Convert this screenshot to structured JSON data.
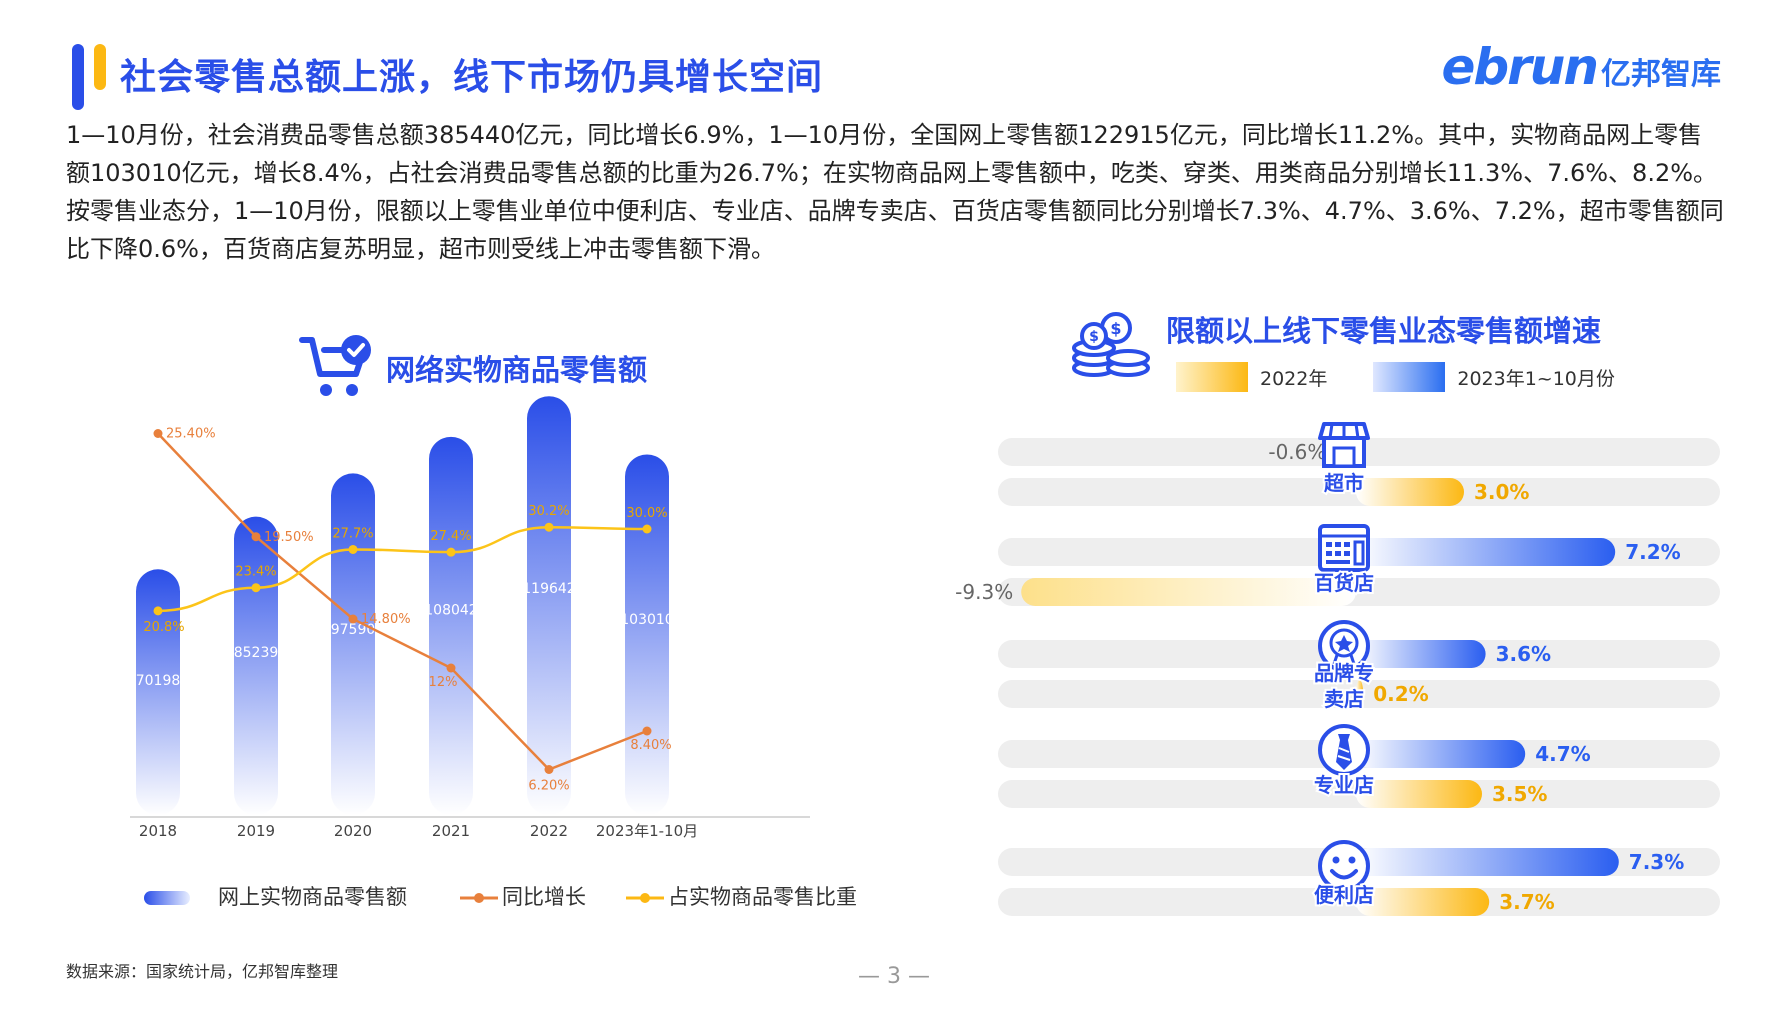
{
  "header": {
    "title": "社会零售总额上涨，线下市场仍具增长空间",
    "logo_brand": "ebrun",
    "logo_cn": "亿邦智库"
  },
  "intro": {
    "p1": "1—10月份，社会消费品零售总额385440亿元，同比增长6.9%，1—10月份，全国网上零售额122915亿元，同比增长11.2%。其中，实物商品网上零售额103010亿元，增长8.4%，占社会消费品零售总额的比重为26.7%；在实物商品网上零售额中，吃类、穿类、用类商品分别增长11.3%、7.6%、8.2%。",
    "p2": "按零售业态分，1—10月份，限额以上零售业单位中便利店、专业店、品牌专卖店、百货店零售额同比分别增长7.3%、4.7%、3.6%、7.2%，超市零售额同比下降0.6%，百货商店复苏明显，超市则受线上冲击零售额下滑。"
  },
  "colors": {
    "blue": "#2a4ee8",
    "orange": "#e8803c",
    "yellow": "#fcb813",
    "track": "#eeeeee"
  },
  "chart_data": [
    {
      "type": "bar",
      "title": "网络实物商品零售额",
      "categories": [
        "2018",
        "2019",
        "2020",
        "2021",
        "2022",
        "2023年1-10月"
      ],
      "series": [
        {
          "name": "网上实物商品零售额",
          "type": "bar",
          "values": [
            70198,
            85239,
            97590,
            108042,
            119642,
            103010
          ],
          "labels": [
            "70198",
            "85239",
            "97590",
            "108042",
            "119642",
            "103010"
          ]
        },
        {
          "name": "同比增长",
          "type": "line",
          "values": [
            25.4,
            19.5,
            14.8,
            12,
            6.2,
            8.4
          ],
          "labels": [
            "25.40%",
            "19.50%",
            "14.80%",
            "12%",
            "6.20%",
            "8.40%"
          ]
        },
        {
          "name": "占实物商品零售比重",
          "type": "line",
          "values": [
            20.8,
            23.4,
            27.7,
            27.4,
            30.2,
            30.0
          ],
          "labels": [
            "20.8%",
            "23.4%",
            "27.7%",
            "27.4%",
            "30.2%",
            "30.0%"
          ]
        }
      ],
      "legend": "bottom"
    },
    {
      "type": "bar",
      "title": "限额以上线下零售业态零售额增速",
      "orientation": "horizontal",
      "categories": [
        "超市",
        "百货店",
        "品牌专卖店",
        "专业店",
        "便利店"
      ],
      "series": [
        {
          "name": "2023年1~10月份",
          "values": [
            -0.6,
            7.2,
            3.6,
            4.7,
            7.3
          ],
          "labels": [
            "-0.6%",
            "7.2%",
            "3.6%",
            "4.7%",
            "7.3%"
          ]
        },
        {
          "name": "2022年",
          "values": [
            3.0,
            -9.3,
            0.2,
            3.5,
            3.7
          ],
          "labels": [
            "3.0%",
            "-9.3%",
            "0.2%",
            "3.5%",
            "3.7%"
          ]
        }
      ],
      "legend": "top"
    }
  ],
  "icons": {
    "cart": "cart-check-icon",
    "coins": "coin-stack-icon",
    "supermarket": "storefront-icon",
    "department": "register-icon",
    "brand": "badge-star-icon",
    "specialty": "necktie-icon",
    "convenience": "smiley-icon"
  },
  "footer": {
    "source": "数据来源：国家统计局，亿邦智库整理",
    "page": "— 3 —"
  }
}
